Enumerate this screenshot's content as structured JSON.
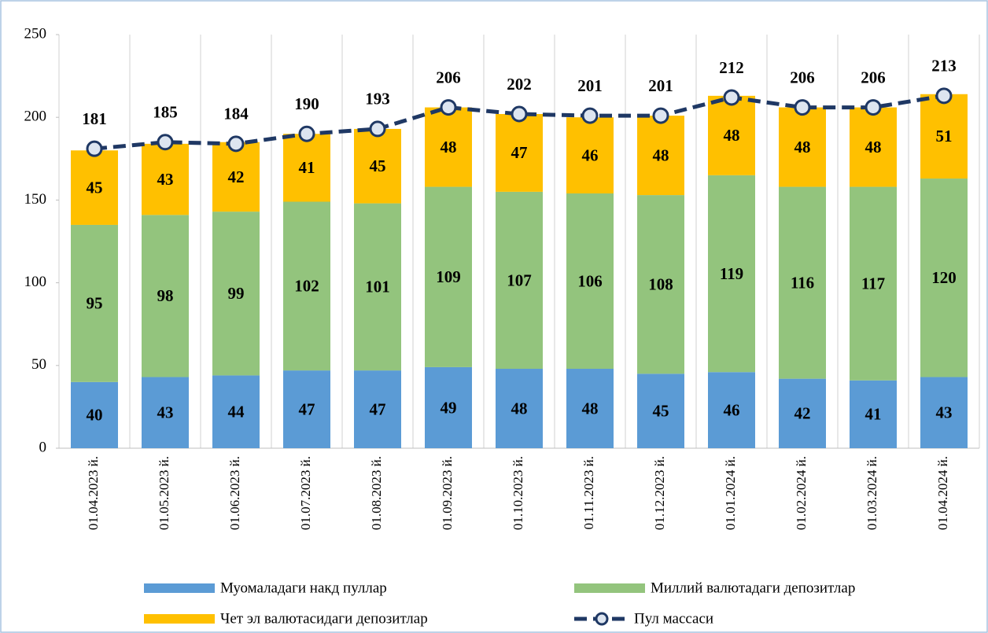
{
  "chart_data": {
    "type": "bar",
    "stacked": true,
    "categories": [
      "01.04.2023 й.",
      "01.05.2023 й.",
      "01.06.2023 й.",
      "01.07.2023 й.",
      "01.08.2023 й.",
      "01.09.2023 й.",
      "01.10.2023 й.",
      "01.11.2023 й.",
      "01.12.2023 й.",
      "01.01.2024 й.",
      "01.02.2024 й.",
      "01.03.2024 й.",
      "01.04.2024 й."
    ],
    "series": [
      {
        "name": "Муомаладаги накд пуллар",
        "color": "#5b9bd5",
        "type": "bar",
        "values": [
          40,
          43,
          44,
          47,
          47,
          49,
          48,
          48,
          45,
          46,
          42,
          41,
          43
        ]
      },
      {
        "name": "Миллий валютадаги депозитлар",
        "color": "#93c47d",
        "type": "bar",
        "values": [
          95,
          98,
          99,
          102,
          101,
          109,
          107,
          106,
          108,
          119,
          116,
          117,
          120
        ]
      },
      {
        "name": "Чет эл валютасидаги депозитлар",
        "color": "#ffc000",
        "type": "bar",
        "values": [
          45,
          43,
          42,
          41,
          45,
          48,
          47,
          46,
          48,
          48,
          48,
          48,
          51
        ]
      },
      {
        "name": "Пул массаси",
        "color": "#1f3864",
        "type": "line",
        "values": [
          181,
          185,
          184,
          190,
          193,
          206,
          202,
          201,
          201,
          212,
          206,
          206,
          213
        ]
      }
    ],
    "ylim": [
      0,
      250
    ],
    "yticks": [
      0,
      50,
      100,
      150,
      200,
      250
    ],
    "legend": "bottom"
  }
}
